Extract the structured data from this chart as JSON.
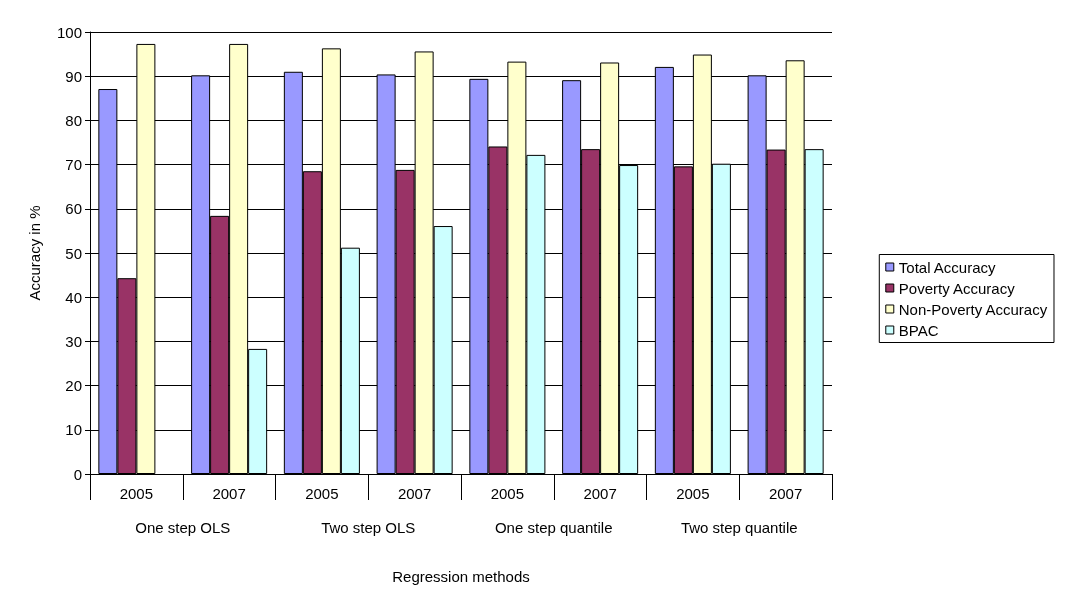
{
  "chart_data": {
    "type": "bar",
    "xlabel": "Regression methods",
    "ylabel": "Accuracy in %",
    "categories": [
      "2005",
      "2007",
      "2005",
      "2007",
      "2005",
      "2007",
      "2005",
      "2007"
    ],
    "annotations": [
      "One step OLS",
      "Two step OLS",
      "One step quantile",
      "Two step quantile"
    ],
    "series": [
      {
        "name": "Total Accuracy",
        "color": "#9999ff",
        "values": [
          87.1,
          90.2,
          91.0,
          90.4,
          89.4,
          89.1,
          92.1,
          90.2
        ]
      },
      {
        "name": "Poverty Accuracy",
        "color": "#993366",
        "values": [
          44.3,
          58.4,
          68.5,
          68.8,
          74.1,
          73.5,
          69.6,
          73.4
        ]
      },
      {
        "name": "Non-Poverty Accuracy",
        "color": "#ffffcc",
        "values": [
          97.3,
          97.3,
          96.3,
          95.6,
          93.3,
          93.1,
          94.9,
          93.6
        ]
      },
      {
        "name": "BPAC",
        "color": "#ccffff",
        "values": [
          null,
          28.3,
          51.2,
          56.1,
          72.2,
          69.9,
          70.2,
          73.5
        ]
      }
    ],
    "ylim": [
      0,
      100
    ],
    "yticks": [
      0,
      10,
      20,
      30,
      40,
      50,
      60,
      70,
      80,
      90,
      100
    ],
    "grid": "y",
    "legend": "right"
  }
}
